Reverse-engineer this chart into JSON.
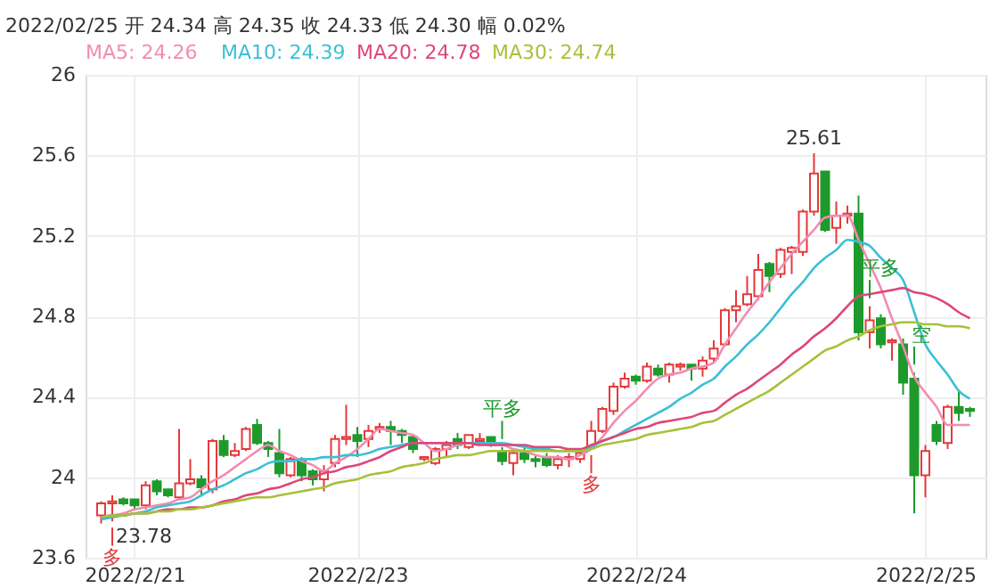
{
  "chart_data": {
    "type": "candlestick",
    "categories": [
      null,
      null,
      null,
      "2022/2/21",
      null,
      null,
      null,
      null,
      null,
      null,
      null,
      null,
      null,
      null,
      null,
      null,
      null,
      null,
      null,
      null,
      null,
      null,
      null,
      "2022/2/23",
      null,
      null,
      null,
      null,
      null,
      null,
      null,
      null,
      null,
      null,
      null,
      null,
      null,
      null,
      null,
      null,
      null,
      null,
      null,
      null,
      null,
      null,
      null,
      null,
      "2022/2/24",
      null,
      null,
      null,
      null,
      null,
      null,
      null,
      null,
      null,
      null,
      null,
      null,
      null,
      null,
      null,
      null,
      null,
      null,
      null,
      null,
      null,
      null,
      null,
      null,
      null,
      "2022/2/25",
      null,
      null,
      null,
      null
    ],
    "ohlc": [
      [
        23.81,
        23.88,
        23.77,
        23.87
      ],
      [
        23.87,
        23.91,
        23.78,
        23.88
      ],
      [
        23.89,
        23.9,
        23.86,
        23.87
      ],
      [
        23.89,
        23.89,
        23.84,
        23.86
      ],
      [
        23.86,
        23.98,
        23.84,
        23.96
      ],
      [
        23.98,
        23.99,
        23.91,
        23.93
      ],
      [
        23.94,
        23.94,
        23.9,
        23.91
      ],
      [
        23.9,
        24.24,
        23.89,
        23.97
      ],
      [
        23.97,
        24.09,
        23.96,
        23.99
      ],
      [
        23.99,
        24.01,
        23.91,
        23.95
      ],
      [
        23.94,
        24.19,
        23.92,
        24.18
      ],
      [
        24.18,
        24.21,
        24.1,
        24.11
      ],
      [
        24.11,
        24.17,
        24.1,
        24.13
      ],
      [
        24.14,
        24.25,
        24.13,
        24.24
      ],
      [
        24.26,
        24.29,
        24.16,
        24.17
      ],
      [
        24.17,
        24.18,
        24.1,
        24.14
      ],
      [
        24.12,
        24.24,
        24.0,
        24.02
      ],
      [
        24.01,
        24.1,
        24.0,
        24.09
      ],
      [
        24.08,
        24.1,
        23.98,
        24.01
      ],
      [
        24.03,
        24.04,
        23.96,
        23.99
      ],
      [
        23.99,
        24.06,
        23.93,
        24.03
      ],
      [
        24.07,
        24.21,
        24.05,
        24.19
      ],
      [
        24.19,
        24.36,
        24.16,
        24.2
      ],
      [
        24.21,
        24.25,
        24.1,
        24.18
      ],
      [
        24.19,
        24.26,
        24.15,
        24.23
      ],
      [
        24.24,
        24.27,
        24.22,
        24.25
      ],
      [
        24.25,
        24.28,
        24.16,
        24.23
      ],
      [
        24.23,
        24.24,
        24.17,
        24.21
      ],
      [
        24.2,
        24.21,
        24.12,
        24.14
      ],
      [
        24.09,
        24.1,
        24.08,
        24.1
      ],
      [
        24.07,
        24.15,
        24.06,
        24.14
      ],
      [
        24.14,
        24.18,
        24.1,
        24.16
      ],
      [
        24.19,
        24.22,
        24.14,
        24.16
      ],
      [
        24.15,
        24.21,
        24.14,
        24.21
      ],
      [
        24.18,
        24.22,
        24.16,
        24.19
      ],
      [
        24.2,
        24.2,
        24.15,
        24.17
      ],
      [
        24.13,
        24.15,
        24.06,
        24.08
      ],
      [
        24.07,
        24.13,
        24.01,
        24.12
      ],
      [
        24.12,
        24.16,
        24.07,
        24.09
      ],
      [
        24.09,
        24.11,
        24.05,
        24.08
      ],
      [
        24.1,
        24.12,
        24.05,
        24.06
      ],
      [
        24.06,
        24.11,
        24.04,
        24.09
      ],
      [
        24.09,
        24.12,
        24.05,
        24.1
      ],
      [
        24.09,
        24.13,
        24.07,
        24.12
      ],
      [
        24.15,
        24.28,
        24.14,
        24.23
      ],
      [
        24.23,
        24.35,
        24.22,
        24.34
      ],
      [
        24.33,
        24.47,
        24.31,
        24.45
      ],
      [
        24.45,
        24.52,
        24.44,
        24.49
      ],
      [
        24.5,
        24.51,
        24.46,
        24.48
      ],
      [
        24.48,
        24.57,
        24.47,
        24.55
      ],
      [
        24.54,
        24.56,
        24.5,
        24.51
      ],
      [
        24.51,
        24.57,
        24.47,
        24.56
      ],
      [
        24.55,
        24.57,
        24.53,
        24.56
      ],
      [
        24.56,
        24.56,
        24.48,
        24.54
      ],
      [
        24.54,
        24.6,
        24.5,
        24.58
      ],
      [
        24.59,
        24.68,
        24.57,
        24.64
      ],
      [
        24.66,
        24.84,
        24.65,
        24.83
      ],
      [
        24.83,
        24.93,
        24.77,
        24.85
      ],
      [
        24.86,
        25.0,
        24.85,
        24.91
      ],
      [
        24.9,
        25.11,
        24.88,
        25.03
      ],
      [
        25.06,
        25.07,
        24.92,
        25.0
      ],
      [
        25.01,
        25.14,
        24.99,
        25.13
      ],
      [
        25.12,
        25.15,
        25.01,
        25.14
      ],
      [
        25.12,
        25.33,
        25.1,
        25.32
      ],
      [
        25.32,
        25.61,
        25.3,
        25.51
      ],
      [
        25.52,
        25.52,
        25.22,
        25.23
      ],
      [
        25.24,
        25.37,
        25.16,
        25.3
      ],
      [
        25.3,
        25.35,
        25.26,
        25.31
      ],
      [
        25.31,
        25.4,
        24.68,
        24.72
      ],
      [
        24.72,
        24.85,
        24.64,
        24.78
      ],
      [
        24.79,
        24.81,
        24.64,
        24.66
      ],
      [
        24.67,
        24.69,
        24.58,
        24.68
      ],
      [
        24.66,
        24.69,
        24.41,
        24.47
      ],
      [
        24.49,
        24.52,
        23.82,
        24.01
      ],
      [
        24.01,
        24.16,
        23.9,
        24.13
      ],
      [
        24.26,
        24.28,
        24.16,
        24.18
      ],
      [
        24.17,
        24.36,
        24.14,
        24.35
      ],
      [
        24.35,
        24.43,
        24.28,
        24.32
      ],
      [
        24.34,
        24.35,
        24.3,
        24.33
      ]
    ],
    "colors": [
      "#e5393b",
      "#e5393b",
      "#1e9a2d",
      "#1e9a2d",
      "#e5393b",
      "#1e9a2d",
      "#1e9a2d",
      "#e5393b",
      "#e5393b",
      "#1e9a2d",
      "#e5393b",
      "#1e9a2d",
      "#e5393b",
      "#e5393b",
      "#1e9a2d",
      "#1e9a2d",
      "#1e9a2d",
      "#e5393b",
      "#1e9a2d",
      "#1e9a2d",
      "#e5393b",
      "#e5393b",
      "#e5393b",
      "#1e9a2d",
      "#e5393b",
      "#e5393b",
      "#1e9a2d",
      "#1e9a2d",
      "#1e9a2d",
      "#e5393b",
      "#e5393b",
      "#e5393b",
      "#1e9a2d",
      "#e5393b",
      "#e5393b",
      "#1e9a2d",
      "#1e9a2d",
      "#e5393b",
      "#1e9a2d",
      "#1e9a2d",
      "#1e9a2d",
      "#e5393b",
      "#e5393b",
      "#e5393b",
      "#e5393b",
      "#e5393b",
      "#e5393b",
      "#e5393b",
      "#1e9a2d",
      "#e5393b",
      "#1e9a2d",
      "#e5393b",
      "#e5393b",
      "#1e9a2d",
      "#e5393b",
      "#e5393b",
      "#e5393b",
      "#e5393b",
      "#e5393b",
      "#e5393b",
      "#1e9a2d",
      "#e5393b",
      "#e5393b",
      "#e5393b",
      "#e5393b",
      "#1e9a2d",
      "#e5393b",
      "#e5393b",
      "#1e9a2d",
      "#e5393b",
      "#1e9a2d",
      "#e5393b",
      "#1e9a2d",
      "#1e9a2d",
      "#e5393b",
      "#1e9a2d",
      "#e5393b",
      "#1e9a2d",
      "#1e9a2d"
    ],
    "series": [
      {
        "name": "MA5: 24.26",
        "color": "#f28cb1",
        "type": "line",
        "values": [
          23.8,
          23.81,
          23.82,
          23.84,
          23.85,
          23.86,
          23.87,
          23.89,
          23.9,
          23.94,
          23.98,
          24.01,
          24.05,
          24.09,
          24.13,
          24.16,
          24.13,
          24.11,
          24.08,
          24.06,
          24.03,
          24.07,
          24.1,
          24.14,
          24.19,
          24.24,
          24.23,
          24.22,
          24.21,
          24.17,
          24.13,
          24.14,
          24.16,
          24.17,
          24.17,
          24.16,
          24.16,
          24.14,
          24.13,
          24.11,
          24.1,
          24.1,
          24.09,
          24.11,
          24.14,
          24.2,
          24.27,
          24.33,
          24.38,
          24.44,
          24.49,
          24.51,
          24.52,
          24.54,
          24.55,
          24.57,
          24.66,
          24.74,
          24.82,
          24.89,
          24.97,
          25.04,
          25.11,
          25.17,
          25.23,
          25.29,
          25.3,
          25.3,
          25.18,
          25.06,
          24.94,
          24.79,
          24.65,
          24.5,
          24.42,
          24.35,
          24.26,
          24.26,
          24.26
        ]
      },
      {
        "name": "MA10: 24.39",
        "color": "#3bbfd6",
        "type": "line",
        "values": [
          23.79,
          23.8,
          23.81,
          23.82,
          23.83,
          23.85,
          23.86,
          23.87,
          23.88,
          23.91,
          23.94,
          23.96,
          23.99,
          24.02,
          24.04,
          24.07,
          24.08,
          24.08,
          24.09,
          24.09,
          24.1,
          24.1,
          24.11,
          24.11,
          24.12,
          24.14,
          24.15,
          24.16,
          24.17,
          24.17,
          24.17,
          24.17,
          24.17,
          24.17,
          24.17,
          24.17,
          24.17,
          24.16,
          24.15,
          24.14,
          24.14,
          24.13,
          24.13,
          24.13,
          24.15,
          24.18,
          24.2,
          24.23,
          24.26,
          24.29,
          24.32,
          24.35,
          24.39,
          24.42,
          24.46,
          24.49,
          24.55,
          24.6,
          24.66,
          24.71,
          24.77,
          24.84,
          24.91,
          24.97,
          25.04,
          25.09,
          25.13,
          25.18,
          25.17,
          25.15,
          25.09,
          25.04,
          24.98,
          24.82,
          24.66,
          24.58,
          24.51,
          24.43,
          24.39
        ]
      },
      {
        "name": "MA20: 24.78",
        "color": "#e0457b",
        "type": "line",
        "values": [
          23.8,
          23.81,
          23.81,
          23.82,
          23.82,
          23.83,
          23.84,
          23.84,
          23.85,
          23.85,
          23.86,
          23.88,
          23.89,
          23.91,
          23.92,
          23.94,
          23.95,
          23.97,
          23.99,
          24.0,
          24.02,
          24.03,
          24.05,
          24.06,
          24.08,
          24.1,
          24.13,
          24.15,
          24.17,
          24.17,
          24.17,
          24.17,
          24.17,
          24.17,
          24.16,
          24.16,
          24.16,
          24.16,
          24.16,
          24.15,
          24.15,
          24.15,
          24.14,
          24.14,
          24.16,
          24.18,
          24.2,
          24.22,
          24.24,
          24.25,
          24.27,
          24.28,
          24.29,
          24.3,
          24.32,
          24.33,
          24.37,
          24.41,
          24.44,
          24.48,
          24.52,
          24.56,
          24.61,
          24.65,
          24.7,
          24.74,
          24.79,
          24.85,
          24.9,
          24.91,
          24.92,
          24.93,
          24.94,
          24.92,
          24.91,
          24.89,
          24.86,
          24.82,
          24.79
        ]
      },
      {
        "name": "MA30: 24.74",
        "color": "#a5c23a",
        "type": "line",
        "values": [
          23.8,
          23.81,
          23.81,
          23.82,
          23.82,
          23.83,
          23.83,
          23.84,
          23.84,
          23.85,
          23.86,
          23.87,
          23.88,
          23.89,
          23.9,
          23.9,
          23.91,
          23.92,
          23.93,
          23.94,
          23.95,
          23.97,
          23.98,
          23.99,
          24.01,
          24.02,
          24.03,
          24.05,
          24.06,
          24.07,
          24.09,
          24.1,
          24.11,
          24.11,
          24.12,
          24.13,
          24.13,
          24.13,
          24.13,
          24.13,
          24.13,
          24.13,
          24.13,
          24.13,
          24.14,
          24.16,
          24.17,
          24.18,
          24.19,
          24.21,
          24.22,
          24.23,
          24.24,
          24.25,
          24.27,
          24.28,
          24.31,
          24.34,
          24.37,
          24.4,
          24.43,
          24.47,
          24.51,
          24.55,
          24.59,
          24.63,
          24.65,
          24.68,
          24.7,
          24.73,
          24.75,
          24.76,
          24.77,
          24.77,
          24.76,
          24.76,
          24.75,
          24.75,
          24.74
        ]
      }
    ],
    "ylim": [
      23.6,
      26
    ],
    "yticks": [
      23.6,
      24,
      24.4,
      24.8,
      25.2,
      25.6,
      26
    ],
    "grid": true,
    "legend": "top",
    "annotations": [
      "2022/02/25 开 24.34 高 24.35 收 24.33 低 24.30 幅 0.02%",
      "23.78",
      "25.61",
      "多",
      "平多",
      "多",
      "平多",
      "空"
    ]
  }
}
